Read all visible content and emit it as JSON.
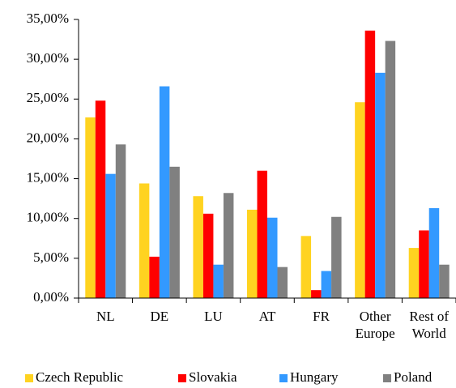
{
  "chart_data": {
    "type": "bar",
    "categories": [
      "NL",
      "DE",
      "LU",
      "AT",
      "FR",
      "Other\nEurope",
      "Rest of\nWorld"
    ],
    "series": [
      {
        "name": "Czech Republic",
        "color": "#ffd320",
        "values": [
          22.7,
          14.4,
          12.8,
          11.1,
          7.8,
          24.6,
          6.3
        ]
      },
      {
        "name": "Slovakia",
        "color": "#ff0000",
        "values": [
          24.8,
          5.2,
          10.6,
          16.0,
          1.0,
          33.6,
          8.5
        ]
      },
      {
        "name": "Hungary",
        "color": "#3399ff",
        "values": [
          15.6,
          26.6,
          4.2,
          10.1,
          3.4,
          28.3,
          11.3
        ]
      },
      {
        "name": "Poland",
        "color": "#808080",
        "values": [
          19.3,
          16.5,
          13.2,
          3.9,
          10.2,
          32.3,
          4.2
        ]
      }
    ],
    "ylim": [
      0,
      35
    ],
    "yticks": [
      {
        "value": 0,
        "label": "0,00%"
      },
      {
        "value": 5,
        "label": "5,00%"
      },
      {
        "value": 10,
        "label": "10,00%"
      },
      {
        "value": 15,
        "label": "15,00%"
      },
      {
        "value": 20,
        "label": "20,00%"
      },
      {
        "value": 25,
        "label": "25,00%"
      },
      {
        "value": 30,
        "label": "30,00%"
      },
      {
        "value": 35,
        "label": "35,00%"
      }
    ],
    "grid": false,
    "legend": "bottom"
  }
}
